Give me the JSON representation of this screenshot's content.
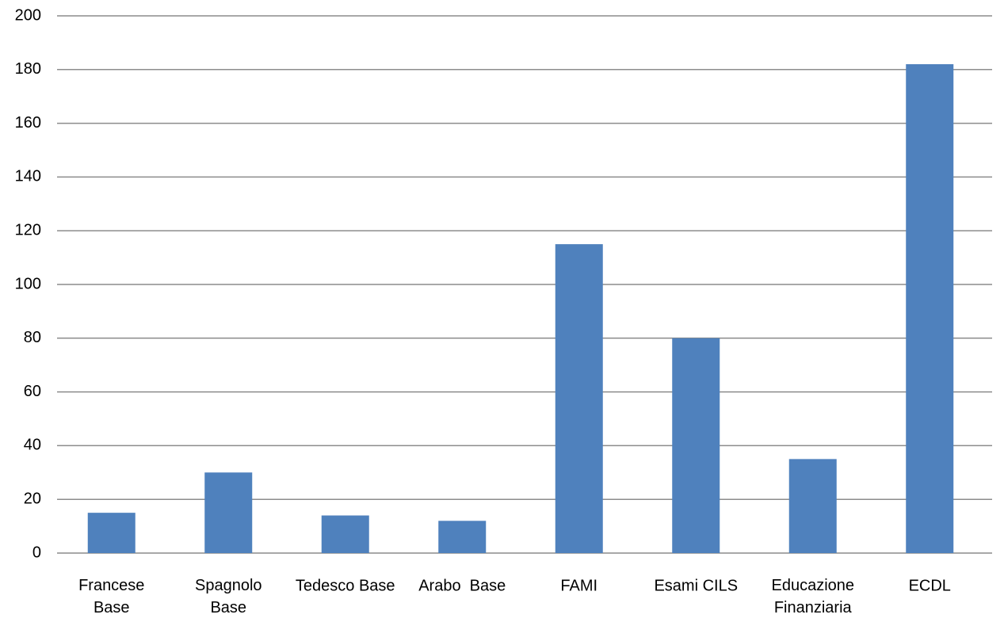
{
  "chart_data": {
    "type": "bar",
    "categories": [
      "Francese Base",
      "Spagnolo Base",
      "Tedesco Base",
      "Arabo  Base",
      "FAMI",
      "Esami CILS",
      "Educazione Finanziaria",
      "ECDL"
    ],
    "values": [
      15,
      30,
      14,
      12,
      115,
      80,
      35,
      182
    ],
    "color": "#4f81bd",
    "ylim": [
      0,
      200
    ],
    "yticks": [
      0,
      20,
      40,
      60,
      80,
      100,
      120,
      140,
      160,
      180,
      200
    ],
    "grid": true
  }
}
